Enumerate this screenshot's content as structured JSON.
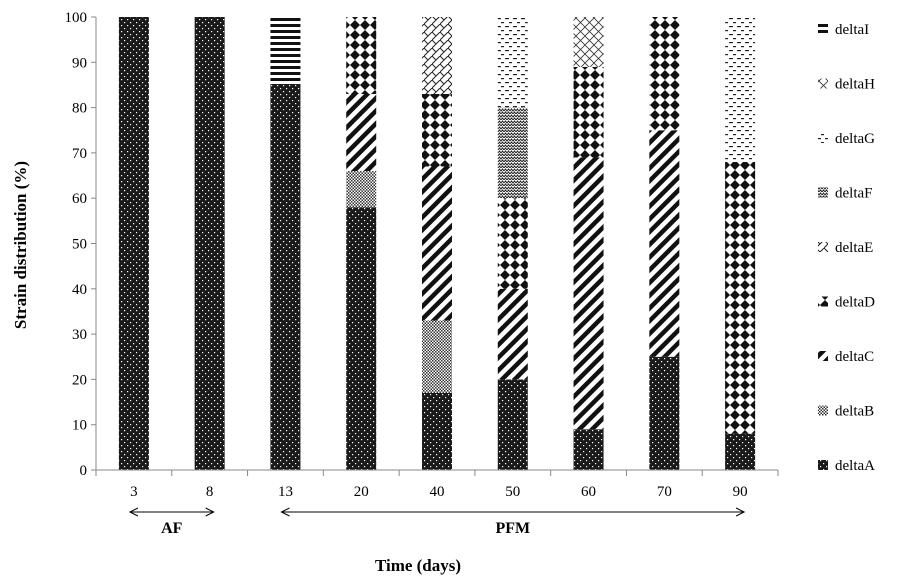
{
  "chart_data": {
    "type": "bar",
    "stacked": true,
    "xlabel": "Time (days)",
    "ylabel": "Strain distribution (%)",
    "ylim": [
      0,
      100
    ],
    "yticks": [
      0,
      10,
      20,
      30,
      40,
      50,
      60,
      70,
      80,
      90,
      100
    ],
    "grid": false,
    "legend_position": "right",
    "categories": [
      "3",
      "8",
      "13",
      "20",
      "40",
      "50",
      "60",
      "70",
      "90"
    ],
    "series": [
      {
        "name": "deltaA",
        "values": [
          100,
          100,
          85,
          58,
          17,
          20,
          9,
          25,
          8
        ]
      },
      {
        "name": "deltaB",
        "values": [
          0,
          0,
          0,
          8,
          16,
          0,
          0,
          0,
          0
        ]
      },
      {
        "name": "deltaC",
        "values": [
          0,
          0,
          0,
          17,
          34,
          20,
          60,
          50,
          0
        ]
      },
      {
        "name": "deltaD",
        "values": [
          0,
          0,
          0,
          17,
          16,
          20,
          20,
          25,
          60
        ]
      },
      {
        "name": "deltaE",
        "values": [
          0,
          0,
          0,
          0,
          17,
          0,
          0,
          0,
          0
        ]
      },
      {
        "name": "deltaF",
        "values": [
          0,
          0,
          0,
          0,
          0,
          20,
          0,
          0,
          0
        ]
      },
      {
        "name": "deltaG",
        "values": [
          0,
          0,
          0,
          0,
          0,
          20,
          0,
          0,
          32
        ]
      },
      {
        "name": "deltaH",
        "values": [
          0,
          0,
          0,
          0,
          0,
          0,
          11,
          0,
          0
        ]
      },
      {
        "name": "deltaI",
        "values": [
          0,
          0,
          15,
          0,
          0,
          0,
          0,
          0,
          0
        ]
      }
    ],
    "groups": [
      {
        "label": "AF",
        "from": "3",
        "to": "8"
      },
      {
        "label": "PFM",
        "from": "13",
        "to": "90"
      }
    ]
  }
}
